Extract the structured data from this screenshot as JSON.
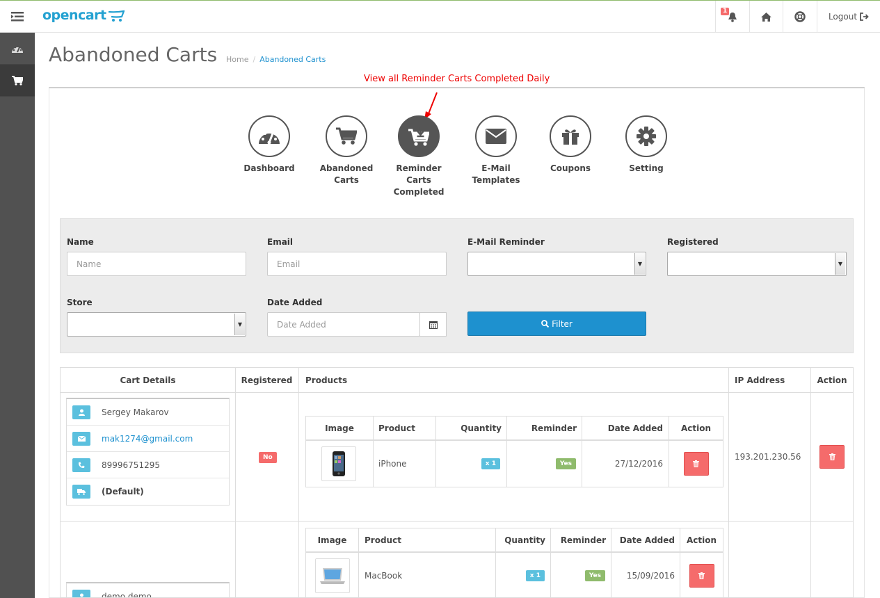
{
  "header": {
    "logo_text": "opencart",
    "notification_count": "1",
    "logout_label": "Logout"
  },
  "page": {
    "title": "Abandoned Carts",
    "breadcrumb": [
      "Home",
      "/",
      "Abandoned Carts"
    ],
    "annotation": "View all Reminder Carts Completed Daily"
  },
  "modules": [
    {
      "label_lines": [
        "Dashboard"
      ],
      "icon": "dashboard-icon"
    },
    {
      "label_lines": [
        "Abandoned",
        "Carts"
      ],
      "icon": "cart-icon"
    },
    {
      "label_lines": [
        "Reminder",
        "Carts",
        "Completed"
      ],
      "icon": "cart-download-icon",
      "active": true
    },
    {
      "label_lines": [
        "E-Mail",
        "Templates"
      ],
      "icon": "envelope-icon"
    },
    {
      "label_lines": [
        "Coupons"
      ],
      "icon": "gift-icon"
    },
    {
      "label_lines": [
        "Setting"
      ],
      "icon": "gear-icon"
    }
  ],
  "filter": {
    "name_label": "Name",
    "name_placeholder": "Name",
    "email_label": "Email",
    "email_placeholder": "Email",
    "reminder_label": "E-Mail Reminder",
    "registered_label": "Registered",
    "store_label": "Store",
    "date_label": "Date Added",
    "date_placeholder": "Date Added",
    "filter_button": "Filter"
  },
  "table": {
    "headers": [
      "Cart Details",
      "Registered",
      "Products",
      "IP Address",
      "Action"
    ],
    "product_headers": [
      "Image",
      "Product",
      "Quantity",
      "Reminder",
      "Date Added",
      "Action"
    ],
    "rows": [
      {
        "name": "Sergey Makarov",
        "email": "mak1274@gmail.com",
        "phone": "89996751295",
        "store": "(Default)",
        "registered": "No",
        "ip": "193.201.230.56",
        "product": {
          "name": "iPhone",
          "quantity": "x 1",
          "reminder": "Yes",
          "date": "27/12/2016"
        }
      },
      {
        "name": "demo demo",
        "product": {
          "name": "MacBook",
          "quantity": "x 1",
          "reminder": "Yes",
          "date": "15/09/2016"
        }
      }
    ]
  },
  "colors": {
    "accent": "#1e91cf",
    "danger": "#f56b6b",
    "info": "#5bc0de",
    "success": "#8fbb6c",
    "sidebar": "#515151"
  }
}
